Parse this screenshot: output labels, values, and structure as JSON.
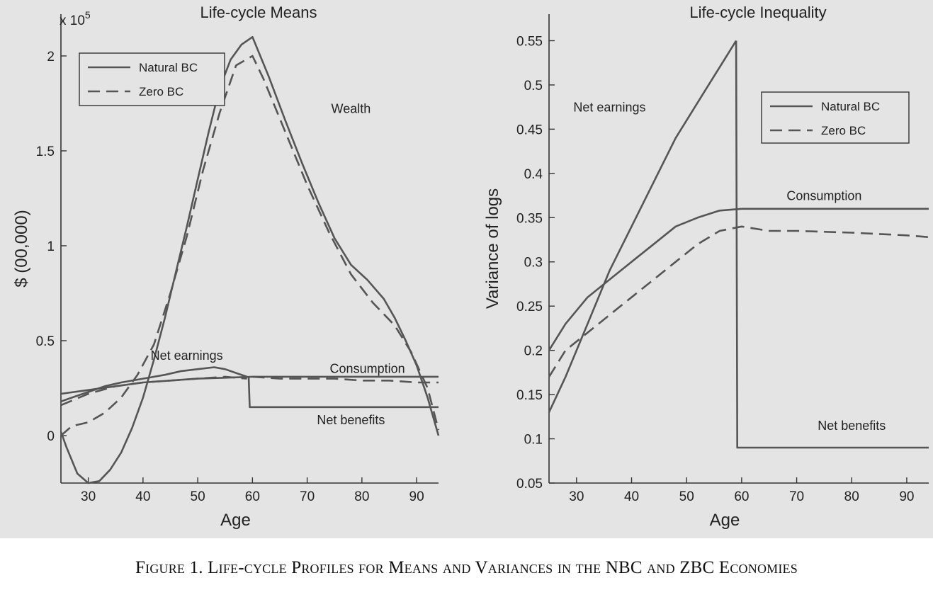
{
  "caption": "Figure 1. Life-cycle Profiles for Means and Variances in the NBC and ZBC Economies",
  "chart_data": [
    {
      "type": "line",
      "title": "Life-cycle Means",
      "xlabel": "Age",
      "ylabel": "$ (00,000)",
      "y_exponent_label": "x 10",
      "y_exponent_power": "5",
      "xlim": [
        25,
        94
      ],
      "ylim": [
        -0.25,
        2.22
      ],
      "xticks": [
        30,
        40,
        50,
        60,
        70,
        80,
        90
      ],
      "yticks": [
        0,
        0.5,
        1,
        1.5,
        2
      ],
      "grid": false,
      "legend": {
        "placement": "top-left",
        "entries": [
          {
            "name": "Natural BC",
            "style": "solid"
          },
          {
            "name": "Zero BC",
            "style": "dashed"
          }
        ]
      },
      "annotations": [
        {
          "text": "Wealth",
          "x": 78,
          "y": 1.7
        },
        {
          "text": "Net earnings",
          "x": 48,
          "y": 0.4
        },
        {
          "text": "Consumption",
          "x": 81,
          "y": 0.33
        },
        {
          "text": "Net benefits",
          "x": 78,
          "y": 0.06
        }
      ],
      "series": [
        {
          "name": "Natural BC",
          "style": "solid",
          "x": [
            25,
            26,
            28,
            30,
            32,
            34,
            36,
            38,
            40,
            42,
            44,
            46,
            48,
            50,
            52,
            54,
            56,
            58,
            60,
            63,
            66,
            69,
            72,
            75,
            78,
            81,
            84,
            86,
            88,
            90,
            92,
            94
          ],
          "values": [
            0.02,
            -0.06,
            -0.2,
            -0.25,
            -0.24,
            -0.18,
            -0.09,
            0.04,
            0.2,
            0.4,
            0.62,
            0.86,
            1.1,
            1.35,
            1.6,
            1.83,
            1.98,
            2.06,
            2.1,
            1.89,
            1.66,
            1.44,
            1.23,
            1.04,
            0.9,
            0.82,
            0.72,
            0.62,
            0.5,
            0.37,
            0.2,
            0.0
          ]
        },
        {
          "name": "Zero BC",
          "style": "dashed",
          "x": [
            25,
            27,
            30,
            33,
            36,
            39,
            42,
            45,
            48,
            51,
            54,
            57,
            60,
            62,
            66,
            70,
            74,
            78,
            82,
            86,
            89,
            92,
            94
          ],
          "values": [
            0.0,
            0.05,
            0.07,
            0.12,
            0.2,
            0.32,
            0.48,
            0.75,
            1.05,
            1.4,
            1.7,
            1.95,
            2.0,
            1.88,
            1.6,
            1.32,
            1.07,
            0.85,
            0.7,
            0.58,
            0.44,
            0.25,
            0.03
          ]
        },
        {
          "name": "Natural BC",
          "style": "solid",
          "x": [
            25,
            27,
            30,
            33,
            36,
            40,
            44,
            47,
            50,
            53,
            55,
            57,
            59
          ],
          "values": [
            0.18,
            0.2,
            0.23,
            0.26,
            0.28,
            0.3,
            0.32,
            0.34,
            0.35,
            0.36,
            0.35,
            0.33,
            0.31
          ]
        },
        {
          "name": "Zero BC",
          "style": "dashed",
          "x": [
            25,
            30,
            35,
            40,
            45,
            50,
            55,
            59
          ],
          "values": [
            0.16,
            0.22,
            0.26,
            0.28,
            0.29,
            0.3,
            0.31,
            0.3
          ]
        },
        {
          "name": "Natural BC",
          "style": "solid",
          "x": [
            25,
            30,
            35,
            40,
            45,
            50,
            55,
            60,
            65,
            70,
            75,
            80,
            85,
            90,
            94
          ],
          "values": [
            0.22,
            0.24,
            0.26,
            0.28,
            0.29,
            0.3,
            0.305,
            0.31,
            0.31,
            0.31,
            0.31,
            0.31,
            0.31,
            0.31,
            0.31
          ]
        },
        {
          "name": "Zero BC",
          "style": "dashed",
          "x": [
            60,
            65,
            70,
            75,
            80,
            85,
            90,
            94
          ],
          "values": [
            0.31,
            0.3,
            0.3,
            0.3,
            0.29,
            0.29,
            0.28,
            0.28
          ]
        },
        {
          "name": "Natural BC",
          "style": "solid",
          "x": [
            59.3,
            59.5,
            70,
            80,
            94
          ],
          "values": [
            0.31,
            0.15,
            0.15,
            0.15,
            0.15
          ]
        }
      ]
    },
    {
      "type": "line",
      "title": "Life-cycle Inequality",
      "xlabel": "Age",
      "ylabel": "Variance of logs",
      "xlim": [
        25,
        94
      ],
      "ylim": [
        0.05,
        0.58
      ],
      "xticks": [
        30,
        40,
        50,
        60,
        70,
        80,
        90
      ],
      "yticks": [
        0.05,
        0.1,
        0.15,
        0.2,
        0.25,
        0.3,
        0.35,
        0.4,
        0.45,
        0.5,
        0.55
      ],
      "grid": false,
      "legend": {
        "placement": "top-right",
        "entries": [
          {
            "name": "Natural BC",
            "style": "solid"
          },
          {
            "name": "Zero BC",
            "style": "dashed"
          }
        ]
      },
      "annotations": [
        {
          "text": "Net earnings",
          "x": 36,
          "y": 0.47
        },
        {
          "text": "Consumption",
          "x": 75,
          "y": 0.37
        },
        {
          "text": "Net benefits",
          "x": 80,
          "y": 0.11
        }
      ],
      "series": [
        {
          "name": "Natural BC",
          "style": "solid",
          "x": [
            25,
            28,
            32,
            36,
            40,
            44,
            48,
            52,
            55,
            57,
            58,
            59
          ],
          "values": [
            0.13,
            0.17,
            0.23,
            0.29,
            0.34,
            0.39,
            0.44,
            0.48,
            0.51,
            0.53,
            0.54,
            0.55
          ]
        },
        {
          "name": "Natural BC",
          "style": "solid",
          "x": [
            59,
            59.2,
            65,
            70,
            80,
            90,
            94
          ],
          "values": [
            0.55,
            0.09,
            0.09,
            0.09,
            0.09,
            0.09,
            0.09
          ]
        },
        {
          "name": "Natural BC",
          "style": "solid",
          "x": [
            25,
            28,
            32,
            36,
            40,
            44,
            48,
            52,
            56,
            60,
            65,
            70,
            80,
            90,
            94
          ],
          "values": [
            0.2,
            0.23,
            0.26,
            0.28,
            0.3,
            0.32,
            0.34,
            0.35,
            0.358,
            0.36,
            0.36,
            0.36,
            0.36,
            0.36,
            0.36
          ]
        },
        {
          "name": "Zero BC",
          "style": "dashed",
          "x": [
            25,
            28,
            32,
            36,
            40,
            44,
            48,
            52,
            56,
            60,
            65,
            70,
            80,
            90,
            94
          ],
          "values": [
            0.17,
            0.2,
            0.22,
            0.24,
            0.26,
            0.28,
            0.3,
            0.32,
            0.335,
            0.34,
            0.335,
            0.335,
            0.333,
            0.33,
            0.328
          ]
        }
      ]
    }
  ]
}
